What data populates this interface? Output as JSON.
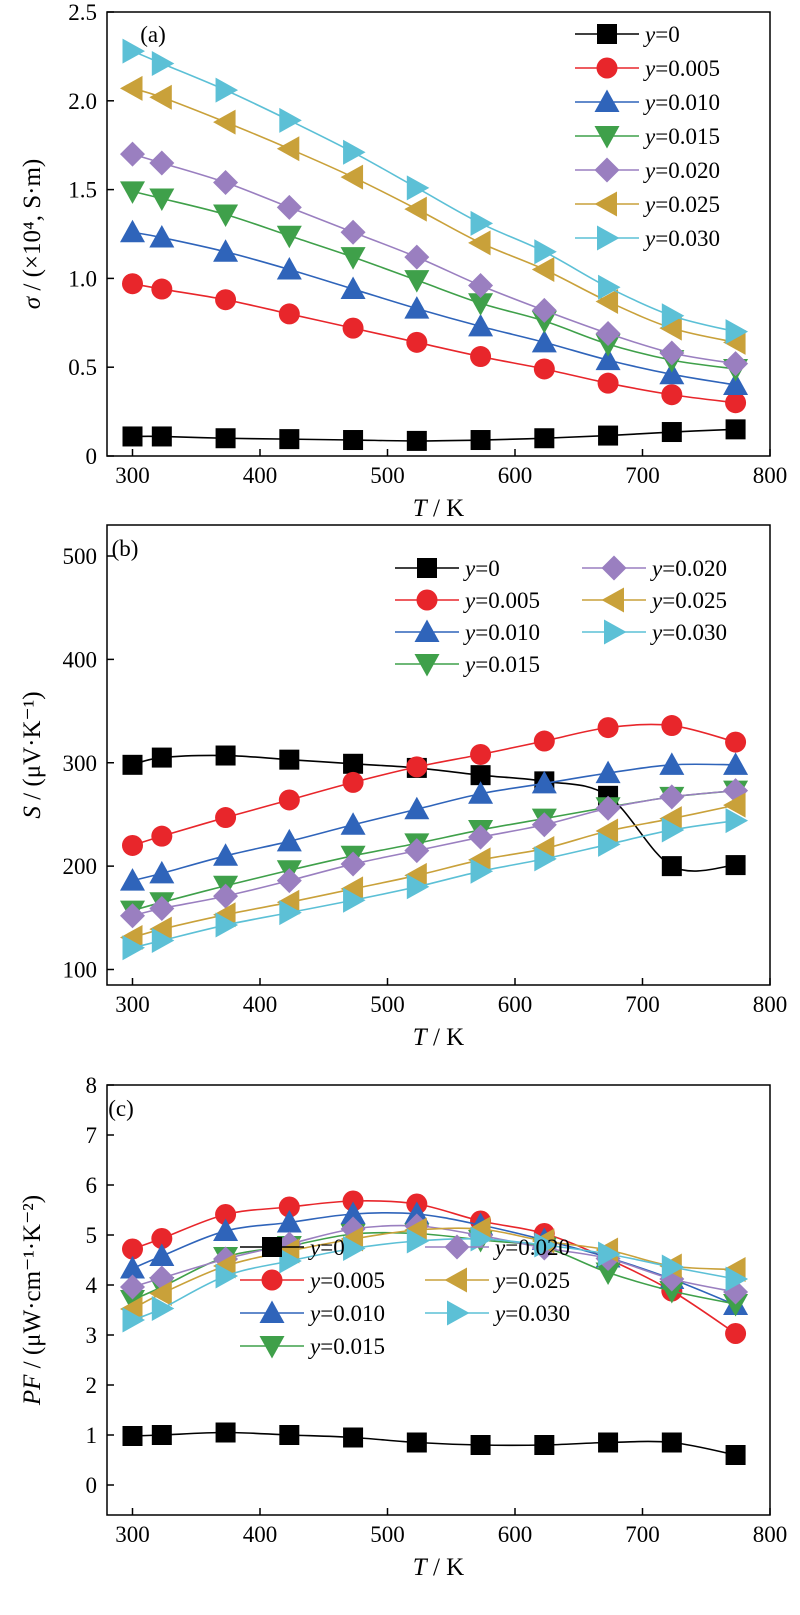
{
  "chart_data": [
    {
      "type": "line",
      "panel_label": "(a)",
      "ylabel": "σ / (×10⁴, S·m)",
      "xlabel": "T / K",
      "xlim": [
        280,
        800
      ],
      "ylim": [
        0,
        2.5
      ],
      "xticks": [
        300,
        400,
        500,
        600,
        700,
        800
      ],
      "xtick_labels": [
        "300",
        "400",
        "500",
        "600",
        "700",
        "800"
      ],
      "yticks": [
        0,
        0.5,
        1.0,
        1.5,
        2.0,
        2.5
      ],
      "ytick_labels": [
        "0",
        "0.5",
        "1.0",
        "1.5",
        "2.0",
        "2.5"
      ],
      "grid": false,
      "legend_position": "top-right",
      "legend_columns": 1,
      "x": [
        300,
        323,
        373,
        423,
        473,
        523,
        573,
        623,
        673,
        723,
        773
      ],
      "series": [
        {
          "name": "y=0",
          "color": "#000000",
          "marker": "square",
          "values": [
            0.11,
            0.11,
            0.1,
            0.095,
            0.09,
            0.085,
            0.09,
            0.1,
            0.115,
            0.135,
            0.15
          ]
        },
        {
          "name": "y=0.005",
          "color": "#e8262b",
          "marker": "circle",
          "values": [
            0.97,
            0.94,
            0.88,
            0.8,
            0.72,
            0.64,
            0.56,
            0.49,
            0.41,
            0.345,
            0.3
          ]
        },
        {
          "name": "y=0.010",
          "color": "#2f64ba",
          "marker": "triangle-up",
          "values": [
            1.26,
            1.23,
            1.15,
            1.05,
            0.94,
            0.83,
            0.73,
            0.64,
            0.54,
            0.46,
            0.4
          ]
        },
        {
          "name": "y=0.015",
          "color": "#3fa04a",
          "marker": "triangle-down",
          "values": [
            1.49,
            1.45,
            1.36,
            1.24,
            1.12,
            0.99,
            0.86,
            0.76,
            0.63,
            0.54,
            0.49
          ]
        },
        {
          "name": "y=0.020",
          "color": "#9a7fc0",
          "marker": "diamond",
          "values": [
            1.7,
            1.65,
            1.54,
            1.4,
            1.26,
            1.12,
            0.96,
            0.82,
            0.69,
            0.58,
            0.52
          ]
        },
        {
          "name": "y=0.025",
          "color": "#c9a13a",
          "marker": "triangle-left",
          "values": [
            2.07,
            2.02,
            1.88,
            1.73,
            1.57,
            1.39,
            1.2,
            1.05,
            0.87,
            0.72,
            0.64
          ]
        },
        {
          "name": "y=0.030",
          "color": "#5cc0d6",
          "marker": "triangle-right",
          "values": [
            2.28,
            2.21,
            2.06,
            1.89,
            1.71,
            1.51,
            1.31,
            1.15,
            0.95,
            0.79,
            0.7
          ]
        }
      ]
    },
    {
      "type": "line",
      "panel_label": "(b)",
      "ylabel": "S / (μV·K⁻¹)",
      "xlabel": "T / K",
      "xlim": [
        280,
        800
      ],
      "ylim": [
        85,
        530
      ],
      "xticks": [
        300,
        400,
        500,
        600,
        700,
        800
      ],
      "xtick_labels": [
        "300",
        "400",
        "500",
        "600",
        "700",
        "800"
      ],
      "yticks": [
        100,
        200,
        300,
        400,
        500
      ],
      "ytick_labels": [
        "100",
        "200",
        "300",
        "400",
        "500"
      ],
      "grid": false,
      "legend_position": "top-right",
      "legend_columns": 2,
      "x": [
        300,
        323,
        373,
        423,
        473,
        523,
        573,
        623,
        673,
        723,
        773
      ],
      "series": [
        {
          "name": "y=0",
          "color": "#000000",
          "marker": "square",
          "values": [
            298,
            305,
            307,
            303,
            299,
            295,
            288,
            282,
            268,
            200,
            201
          ]
        },
        {
          "name": "y=0.005",
          "color": "#e8262b",
          "marker": "circle",
          "values": [
            220,
            229,
            247,
            264,
            281,
            296,
            308,
            321,
            334,
            336,
            320
          ]
        },
        {
          "name": "y=0.010",
          "color": "#2f64ba",
          "marker": "triangle-up",
          "values": [
            186,
            193,
            210,
            224,
            240,
            255,
            270,
            280,
            290,
            298,
            298
          ]
        },
        {
          "name": "y=0.015",
          "color": "#3fa04a",
          "marker": "triangle-down",
          "values": [
            157,
            165,
            181,
            196,
            210,
            222,
            235,
            246,
            257,
            267,
            273
          ]
        },
        {
          "name": "y=0.020",
          "color": "#9a7fc0",
          "marker": "diamond",
          "values": [
            152,
            159,
            171,
            186,
            202,
            215,
            228,
            240,
            256,
            267,
            273
          ]
        },
        {
          "name": "y=0.025",
          "color": "#c9a13a",
          "marker": "triangle-left",
          "values": [
            131,
            139,
            153,
            165,
            178,
            191,
            206,
            217,
            234,
            246,
            259
          ]
        },
        {
          "name": "y=0.030",
          "color": "#5cc0d6",
          "marker": "triangle-right",
          "values": [
            121,
            128,
            143,
            155,
            167,
            180,
            195,
            207,
            221,
            235,
            244
          ]
        }
      ]
    },
    {
      "type": "line",
      "panel_label": "(c)",
      "ylabel": "PF / (μW·cm⁻¹·K⁻²)",
      "xlabel": "T / K",
      "xlim": [
        280,
        800
      ],
      "ylim": [
        -0.6,
        8
      ],
      "xticks": [
        300,
        400,
        500,
        600,
        700,
        800
      ],
      "xtick_labels": [
        "300",
        "400",
        "500",
        "600",
        "700",
        "800"
      ],
      "yticks": [
        0,
        1,
        2,
        3,
        4,
        5,
        6,
        7,
        8
      ],
      "ytick_labels": [
        "0",
        "1",
        "2",
        "3",
        "4",
        "5",
        "6",
        "7",
        "8"
      ],
      "grid": false,
      "legend_position": "lower-middle",
      "legend_columns": 2,
      "x": [
        300,
        323,
        373,
        423,
        473,
        523,
        573,
        623,
        673,
        723,
        773
      ],
      "series": [
        {
          "name": "y=0",
          "color": "#000000",
          "marker": "square",
          "values": [
            0.98,
            1.0,
            1.05,
            1.0,
            0.95,
            0.85,
            0.8,
            0.8,
            0.85,
            0.85,
            0.6
          ]
        },
        {
          "name": "y=0.005",
          "color": "#e8262b",
          "marker": "circle",
          "values": [
            4.72,
            4.93,
            5.41,
            5.56,
            5.68,
            5.62,
            5.28,
            5.03,
            4.52,
            3.88,
            3.03
          ]
        },
        {
          "name": "y=0.010",
          "color": "#2f64ba",
          "marker": "triangle-up",
          "values": [
            4.33,
            4.58,
            5.08,
            5.25,
            5.42,
            5.42,
            5.2,
            4.9,
            4.55,
            4.12,
            3.6
          ]
        },
        {
          "name": "y=0.015",
          "color": "#3fa04a",
          "marker": "triangle-down",
          "values": [
            3.7,
            3.96,
            4.56,
            4.78,
            5.02,
            5.03,
            4.9,
            4.75,
            4.25,
            3.88,
            3.62
          ]
        },
        {
          "name": "y=0.020",
          "color": "#9a7fc0",
          "marker": "diamond",
          "values": [
            3.96,
            4.14,
            4.52,
            4.82,
            5.12,
            5.18,
            4.99,
            4.74,
            4.53,
            4.12,
            3.86
          ]
        },
        {
          "name": "y=0.025",
          "color": "#c9a13a",
          "marker": "triangle-left",
          "values": [
            3.52,
            3.83,
            4.38,
            4.68,
            4.92,
            5.1,
            5.12,
            4.88,
            4.7,
            4.38,
            4.31
          ]
        },
        {
          "name": "y=0.030",
          "color": "#5cc0d6",
          "marker": "triangle-right",
          "values": [
            3.3,
            3.53,
            4.18,
            4.48,
            4.73,
            4.88,
            4.92,
            4.8,
            4.62,
            4.36,
            4.12
          ]
        }
      ]
    }
  ]
}
